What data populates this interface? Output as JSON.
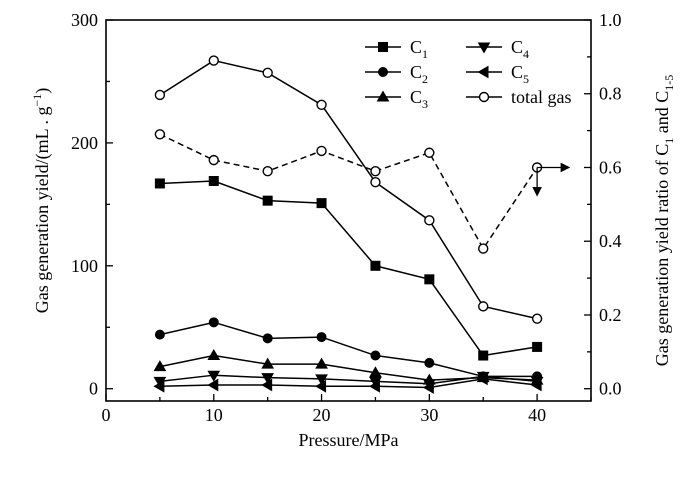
{
  "chart_data": {
    "type": "line",
    "xlabel": "Pressure/MPa",
    "ylabel_left": {
      "text": "Gas generation yield/(mL . g",
      "sup": "−1",
      "close": ")"
    },
    "ylabel_right": {
      "text": "Gas generation yield ratio of C",
      "sub1": "1",
      "mid": " and C",
      "sub2": "1-5"
    },
    "xlim": [
      0,
      45
    ],
    "ylim_left": [
      -10,
      300
    ],
    "ylim_right": [
      -0.0333,
      1.0
    ],
    "xticks": [
      0,
      10,
      20,
      30,
      40
    ],
    "yticks_left": [
      0,
      100,
      200,
      300
    ],
    "yticks_right": [
      0.0,
      0.2,
      0.4,
      0.6,
      0.8,
      1.0
    ],
    "x": [
      5,
      10,
      15,
      20,
      25,
      30,
      35,
      40
    ],
    "legend_placement": "top-right",
    "series": [
      {
        "name": "C",
        "sub": "1",
        "marker": "square",
        "axis": "left",
        "line": "solid",
        "values": [
          167,
          169,
          153,
          151,
          100,
          89,
          27,
          34
        ]
      },
      {
        "name": "C",
        "sub": "2",
        "marker": "circle",
        "axis": "left",
        "line": "solid",
        "values": [
          44,
          54,
          41,
          42,
          27,
          21,
          10,
          10
        ]
      },
      {
        "name": "C",
        "sub": "3",
        "marker": "triangle-up",
        "axis": "left",
        "line": "solid",
        "values": [
          18,
          27,
          20,
          20,
          13,
          7,
          9,
          7
        ]
      },
      {
        "name": "C",
        "sub": "4",
        "marker": "triangle-down",
        "axis": "left",
        "line": "solid",
        "values": [
          6,
          11,
          9,
          8,
          6,
          4,
          10,
          6
        ]
      },
      {
        "name": "C",
        "sub": "5",
        "marker": "triangle-left",
        "axis": "left",
        "line": "solid",
        "values": [
          2,
          3,
          3,
          2,
          2,
          1,
          8,
          3
        ]
      },
      {
        "name": "total gas",
        "sub": "",
        "marker": "open-circle",
        "axis": "left",
        "line": "solid",
        "values": [
          239,
          267,
          257,
          231,
          168,
          137,
          67,
          57
        ]
      },
      {
        "name": "",
        "sub": "",
        "marker": "open-circle",
        "axis": "right",
        "line": "dashed",
        "values": [
          0.69,
          0.62,
          0.59,
          0.645,
          0.59,
          0.64,
          0.38,
          0.6
        ]
      }
    ]
  }
}
